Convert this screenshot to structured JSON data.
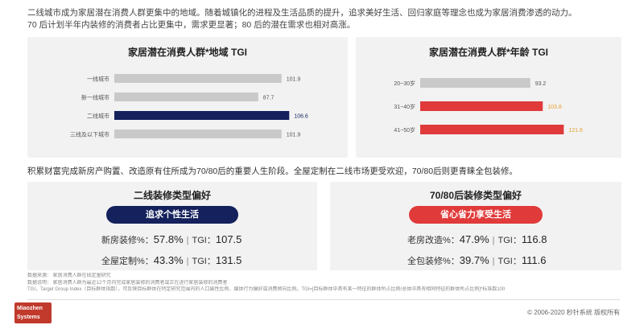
{
  "intro": {
    "line1": "二线城市成为家居潜在消费人群更集中的地域。随着城镇化的进程及生活品质的提升，追求美好生活、回归家庭等理念也成为家居消费渗透的动力。",
    "line2": "70 后计划半年内装修的消费者占比更集中，需求更显著；80 后的潜在需求也相对高涨。"
  },
  "chart_data": [
    {
      "type": "bar",
      "orientation": "horizontal",
      "title": "家居潜在消费人群*地域 TGI",
      "categories": [
        "一线城市",
        "新一线城市",
        "二线城市",
        "三线及以下城市"
      ],
      "values": [
        101.9,
        87.7,
        106.6,
        101.9
      ],
      "value_labels": [
        "101.9",
        "87.7",
        "106.6",
        "101.9"
      ],
      "highlight_index": 2,
      "xlim": [
        0,
        130
      ],
      "colors": {
        "default": "#c9c9c9",
        "highlight": "#14215c",
        "label_highlight": "#14215c"
      }
    },
    {
      "type": "bar",
      "orientation": "horizontal",
      "title": "家居潜在消费人群*年龄 TGI",
      "categories": [
        "20~30岁",
        "31~40岁",
        "41~50岁"
      ],
      "values": [
        93.2,
        103.8,
        121.6
      ],
      "value_labels": [
        "93.2",
        "103.8",
        "121.6"
      ],
      "highlight_indices": [
        1,
        2
      ],
      "xlim": [
        0,
        150
      ],
      "colors": {
        "default": "#c9c9c9",
        "highlight": "#e03a3a",
        "label_highlight": "#e8a030"
      }
    }
  ],
  "section2": {
    "text": "积累财富完成新房产购置、改造原有住所成为70/80后的重要人生阶段。全屋定制在二线市场更受欢迎，70/80后则更青睐全包装修。"
  },
  "left_box": {
    "title": "二线装修类型偏好",
    "pill": "追求个性生活",
    "stats": [
      {
        "label": "新房装修%：",
        "pct": "57.8%",
        "tgi_label": "TGI：",
        "tgi": "107.5"
      },
      {
        "label": "全屋定制%：",
        "pct": "43.3%",
        "tgi_label": "TGI：",
        "tgi": "131.5"
      }
    ]
  },
  "right_box": {
    "title": "70/80后装修类型偏好",
    "pill": "省心省力享受生活",
    "stats": [
      {
        "label": "老房改造%：",
        "pct": "47.9%",
        "tgi_label": "TGI：",
        "tgi": "116.8"
      },
      {
        "label": "全包装修%：",
        "pct": "39.7%",
        "tgi_label": "TGI：",
        "tgi": "111.6"
      }
    ]
  },
  "notes": {
    "line1": "数据来源：  家居消费人群在线定量研究",
    "line2": "数据说明：  家居消费人群为最近12个月内完成家居装修的消费者或正在进行家居装修的消费者",
    "line3": "TGI，Target Group Index（目标群体指数），可反映目标群体在特定研究范围内的人口属性比例、媒体行为偏好或消费倾向比例。TGI=[目标群体中具有某一特征的群体所占比例/总体中具有相同特征的群体所占比例]*标准数100"
  },
  "footer": {
    "logo_line1": "Miaozhen",
    "logo_line2": "Systems",
    "copyright": "© 2006-2020 秒针系统 版权所有"
  }
}
